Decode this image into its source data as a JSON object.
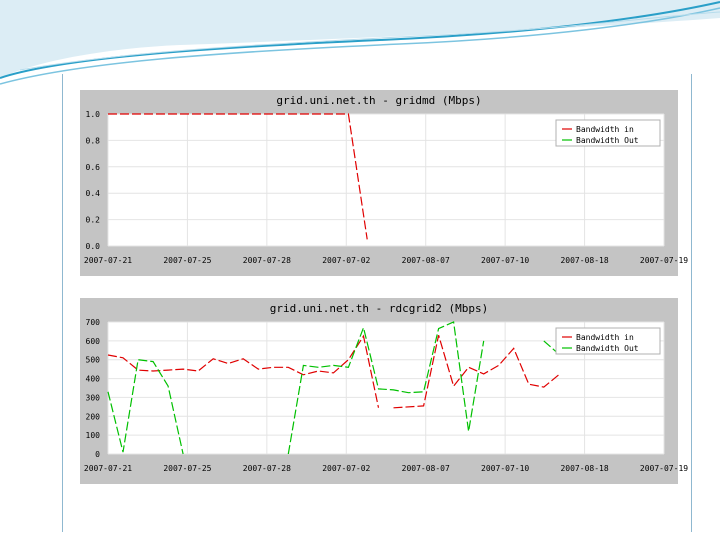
{
  "colors": {
    "series_in": "#e00000",
    "series_out": "#00c000",
    "panel_bg": "#c4c4c4",
    "plot_bg": "#ffffff",
    "grid": "#e4e4e4",
    "accent": "#2a9fc8"
  },
  "chart_data": [
    {
      "type": "line",
      "title": "grid.uni.net.th - gridmd (Mbps)",
      "x_ticks": [
        "2007-07-21",
        "2007-07-25",
        "2007-07-28",
        "2007-07-02",
        "2007-08-07",
        "2007-07-10",
        "2007-08-18",
        "2007-07-19"
      ],
      "y_ticks": [
        "0.0",
        "0.2",
        "0.4",
        "0.6",
        "0.8",
        "1.0"
      ],
      "ylim": [
        0,
        1.0
      ],
      "x_range": [
        0,
        74
      ],
      "grid": true,
      "legend_position": "top-right",
      "legend": [
        "Bandwidth in",
        "Bandwidth Out"
      ],
      "series": [
        {
          "name": "Bandwidth in",
          "color": "#e00000",
          "points": [
            [
              0,
              1.0
            ],
            [
              32,
              1.0
            ],
            [
              34.5,
              0.05
            ]
          ]
        },
        {
          "name": "Bandwidth Out",
          "color": "#00c000",
          "points": []
        }
      ]
    },
    {
      "type": "line",
      "title": "grid.uni.net.th - rdcgrid2 (Mbps)",
      "x_ticks": [
        "2007-07-21",
        "2007-07-25",
        "2007-07-28",
        "2007-07-02",
        "2007-08-07",
        "2007-07-10",
        "2007-08-18",
        "2007-07-19"
      ],
      "y_ticks": [
        "0",
        "100",
        "200",
        "300",
        "400",
        "500",
        "600",
        "700"
      ],
      "ylim": [
        0,
        700
      ],
      "x_range": [
        0,
        74
      ],
      "grid": true,
      "legend_position": "top-right",
      "legend": [
        "Bandwidth in",
        "Bandwidth Out"
      ],
      "series": [
        {
          "name": "Bandwidth in",
          "color": "#e00000",
          "points": [
            [
              0,
              525
            ],
            [
              2,
              510
            ],
            [
              4,
              445
            ],
            [
              6,
              440
            ],
            [
              8,
              445
            ],
            [
              10,
              450
            ],
            [
              12,
              440
            ],
            [
              14,
              505
            ],
            [
              16,
              480
            ],
            [
              18,
              505
            ],
            [
              20,
              450
            ],
            [
              22,
              460
            ],
            [
              24,
              460
            ],
            [
              26,
              420
            ],
            [
              28,
              440
            ],
            [
              30,
              430
            ],
            [
              32,
              500
            ],
            [
              34,
              625
            ],
            [
              36,
              245
            ],
            [
              null,
              null
            ],
            [
              38,
              245
            ],
            [
              42,
              255
            ],
            [
              44,
              630
            ],
            [
              46,
              360
            ],
            [
              48,
              460
            ],
            [
              50,
              425
            ],
            [
              52,
              470
            ],
            [
              54,
              560
            ],
            [
              56,
              370
            ],
            [
              58,
              355
            ],
            [
              60,
              420
            ]
          ]
        },
        {
          "name": "Bandwidth Out",
          "color": "#00c000",
          "points": [
            [
              0,
              330
            ],
            [
              2,
              10
            ],
            [
              4,
              500
            ],
            [
              6,
              490
            ],
            [
              8,
              360
            ],
            [
              10,
              0
            ],
            [
              null,
              null
            ],
            [
              24,
              0
            ],
            [
              26,
              470
            ],
            [
              28,
              460
            ],
            [
              30,
              470
            ],
            [
              32,
              460
            ],
            [
              34,
              670
            ],
            [
              36,
              345
            ],
            [
              38,
              340
            ],
            [
              40,
              325
            ],
            [
              42,
              330
            ],
            [
              44,
              665
            ],
            [
              46,
              700
            ],
            [
              48,
              120
            ],
            [
              50,
              600
            ],
            [
              null,
              null
            ],
            [
              58,
              600
            ],
            [
              60,
              530
            ]
          ]
        }
      ]
    }
  ]
}
